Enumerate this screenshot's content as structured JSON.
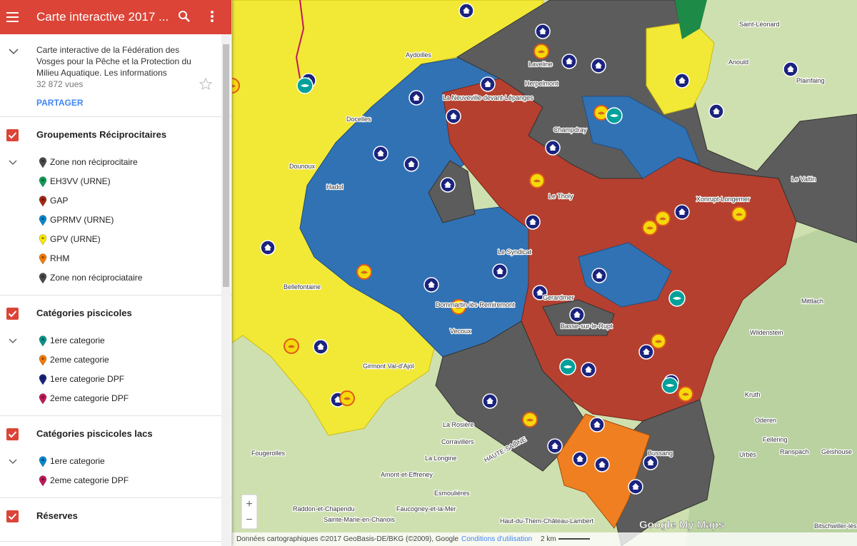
{
  "header": {
    "title": "Carte interactive 2017 ..."
  },
  "description": {
    "text": "Carte interactive de la Fédération des Vosges pour la Pêche et la Protection du Milieu Aquatique. Les informations",
    "views": "32 872 vues",
    "share": "PARTAGER"
  },
  "layers": [
    {
      "title": "Groupements Réciprocitaires",
      "items": [
        {
          "label": "Zone non réciprocitaire",
          "color": "#4a4a4a"
        },
        {
          "label": "EH3VV (URNE)",
          "color": "#0f9d58"
        },
        {
          "label": "GAP",
          "color": "#a52714"
        },
        {
          "label": "GPRMV (URNE)",
          "color": "#0288d1"
        },
        {
          "label": "GPV (URNE)",
          "color": "#ffea00"
        },
        {
          "label": "RHM",
          "color": "#f57c00"
        },
        {
          "label": "Zone non réciprociataire",
          "color": "#4a4a4a"
        }
      ]
    },
    {
      "title": "Catégories piscicoles",
      "items": [
        {
          "label": "1ere categorie",
          "color": "#009688"
        },
        {
          "label": "2eme categorie",
          "color": "#f57c00"
        },
        {
          "label": "1ere categorie DPF",
          "color": "#1a237e"
        },
        {
          "label": "2eme categorie DPF",
          "color": "#c2185b"
        }
      ]
    },
    {
      "title": "Catégories piscicoles lacs",
      "items": [
        {
          "label": "1ere categorie",
          "color": "#0288d1"
        },
        {
          "label": "2eme categorie DPF",
          "color": "#c2185b"
        }
      ]
    },
    {
      "title": "Réserves",
      "items": []
    }
  ],
  "map": {
    "labels": [
      "Saint-Léonard",
      "Anould",
      "Plainfaing",
      "Laveline",
      "Herpelmont",
      "Champdray",
      "Le Tholy",
      "Xonrupt-Longemer",
      "Le Syndicat",
      "Gerardmer",
      "Basse-sur-le-Rupt",
      "Vecoux",
      "Dommartin-lès-Remiremont",
      "Bellefontaine",
      "Girmont Val-d'Ajol",
      "La Rosière",
      "Corravillers",
      "La Longine",
      "Amont-et-Effreney",
      "Esmoulières",
      "Fougerolles",
      "Raddon-et-Chapendu",
      "Faucogney-et-la-Mer",
      "Sainte-Marie-en-Chanois",
      "Haut-du-Them-Château-Lambert",
      "Mittlach",
      "Wildenstein",
      "Kruth",
      "Oderen",
      "Fellering",
      "Urbès",
      "Ranspach",
      "Geishouse",
      "Bitschwiller-lès-Thann",
      "Le Valtin",
      "Dounoux",
      "Hadol",
      "La Neuveville-devant-Lépanges",
      "Docelles",
      "Aydoilles",
      "Bussang",
      "HAUTE-SAÔNE"
    ],
    "attribution": "Données cartographiques ©2017 GeoBasis-DE/BKG (©2009), Google",
    "terms": "Conditions d'utilisation",
    "scale": "2 km",
    "logo": "Google My Maps"
  }
}
